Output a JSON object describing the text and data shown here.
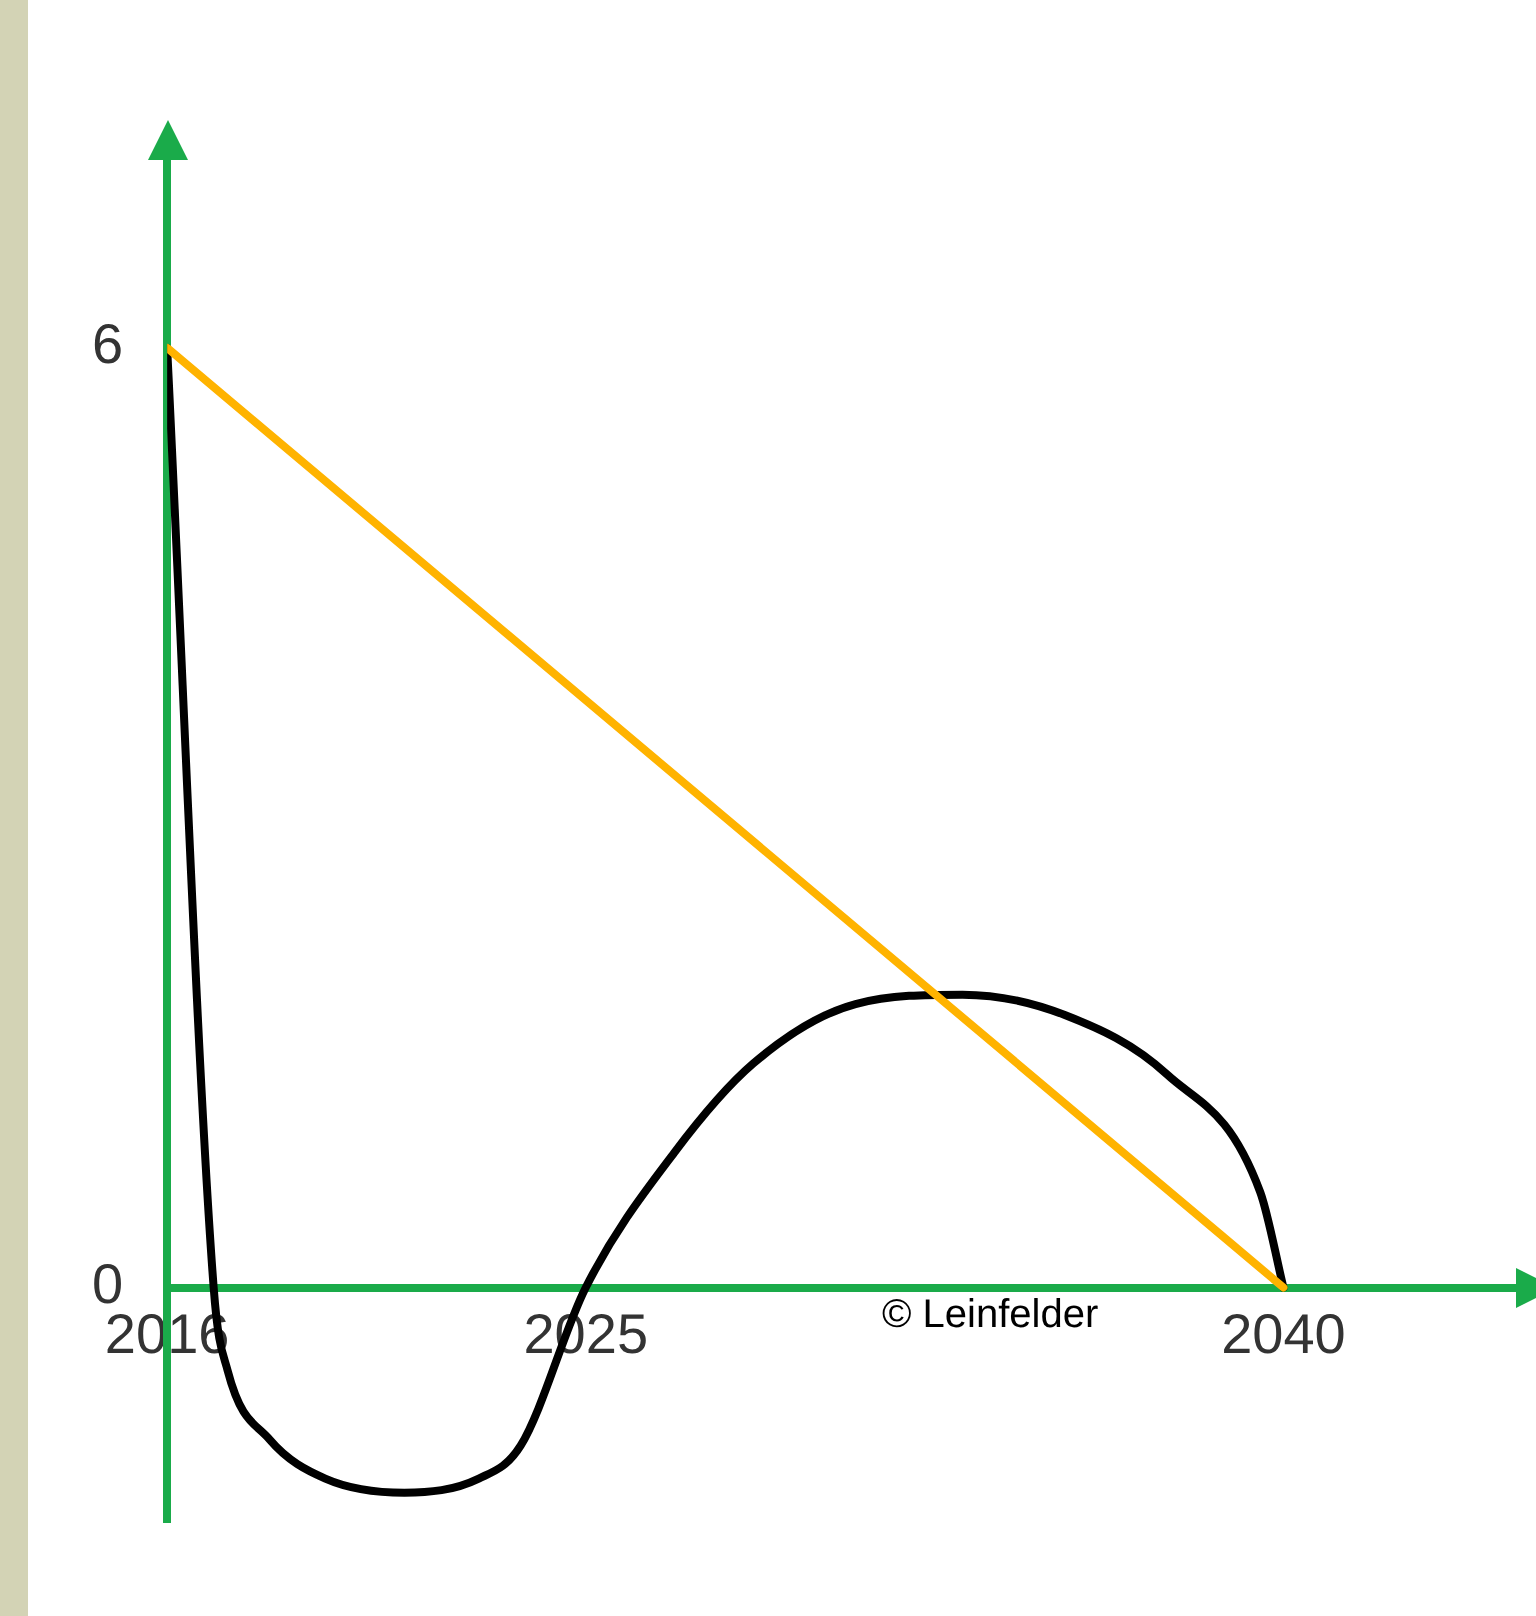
{
  "chart_data": {
    "type": "line",
    "annotations": [
      "© Leinfelder"
    ],
    "marker": "none",
    "line_style": "solid",
    "grid": false,
    "series": [
      {
        "color": "#ffb300",
        "x": [
          2016,
          2040
        ],
        "values": [
          6,
          0
        ]
      },
      {
        "color": "#000000",
        "x": [
          2016,
          2017.0,
          2017.3,
          2018.2,
          2019.4,
          2021.1,
          2022.7,
          2023.6,
          2025,
          2026.9,
          2028.6,
          2030.8,
          2033.1,
          2035.3,
          2037.5,
          2039.5,
          2040
        ],
        "values": [
          6,
          0,
          -0.53,
          -0.97,
          -1.22,
          -1.31,
          -1.22,
          -1.01,
          0,
          0.86,
          1.43,
          1.81,
          1.87,
          1.74,
          1.36,
          0.61,
          0
        ]
      }
    ],
    "xlim": [
      2016,
      2045
    ],
    "ylim": [
      -1.5,
      7.2
    ],
    "xticks": [
      2016,
      2025,
      2040
    ],
    "yticks": [
      0,
      6
    ]
  }
}
